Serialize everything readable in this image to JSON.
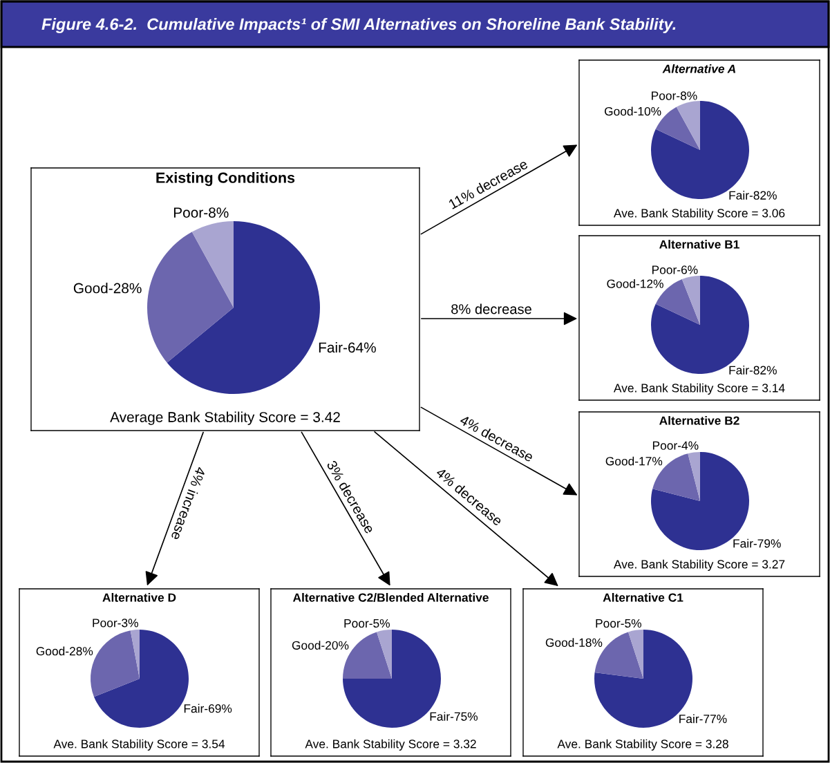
{
  "chart_data": [
    {
      "type": "other",
      "title": "Figure 4.6-2.  Cumulative Impacts¹ of SMI Alternatives on Shoreline Bank Stability."
    },
    {
      "type": "pie",
      "title": "Existing Conditions",
      "categories": [
        "Fair-64%",
        "Good-28%",
        "Poor-8%"
      ],
      "values": [
        64,
        28,
        8
      ],
      "colors": [
        "#2e3192",
        "#6c66ae",
        "#a9a5d1"
      ],
      "annotations": [
        "Average Bank Stability Score = 3.42"
      ]
    },
    {
      "type": "pie",
      "title": "Alternative A",
      "categories": [
        "Fair-82%",
        "Good-10%",
        "Poor-8%"
      ],
      "values": [
        82,
        10,
        8
      ],
      "colors": [
        "#2e3192",
        "#6c66ae",
        "#a9a5d1"
      ],
      "annotations": [
        "Ave. Bank Stability Score = 3.06",
        "11% decrease"
      ]
    },
    {
      "type": "pie",
      "title": "Alternative B1",
      "categories": [
        "Fair-82%",
        "Good-12%",
        "Poor-6%"
      ],
      "values": [
        82,
        12,
        6
      ],
      "colors": [
        "#2e3192",
        "#6c66ae",
        "#a9a5d1"
      ],
      "annotations": [
        "Ave. Bank Stability Score = 3.14",
        "8% decrease"
      ]
    },
    {
      "type": "pie",
      "title": "Alternative B2",
      "categories": [
        "Fair-79%",
        "Good-17%",
        "Poor-4%"
      ],
      "values": [
        79,
        17,
        4
      ],
      "colors": [
        "#2e3192",
        "#6c66ae",
        "#a9a5d1"
      ],
      "annotations": [
        "Ave. Bank Stability Score = 3.27",
        "4% decrease"
      ]
    },
    {
      "type": "pie",
      "title": "Alternative D",
      "categories": [
        "Fair-69%",
        "Good-28%",
        "Poor-3%"
      ],
      "values": [
        69,
        28,
        3
      ],
      "colors": [
        "#2e3192",
        "#6c66ae",
        "#a9a5d1"
      ],
      "annotations": [
        "Ave. Bank Stability Score = 3.54",
        "4% increase"
      ]
    },
    {
      "type": "pie",
      "title": "Alternative C2/Blended Alternative",
      "categories": [
        "Fair-75%",
        "Good-20%",
        "Poor-5%"
      ],
      "values": [
        75,
        20,
        5
      ],
      "colors": [
        "#2e3192",
        "#6c66ae",
        "#a9a5d1"
      ],
      "annotations": [
        "Ave. Bank Stability Score = 3.32",
        "3% decrease"
      ]
    },
    {
      "type": "pie",
      "title": "Alternative C1",
      "categories": [
        "Fair-77%",
        "Good-18%",
        "Poor-5%"
      ],
      "values": [
        77,
        18,
        5
      ],
      "colors": [
        "#2e3192",
        "#6c66ae",
        "#a9a5d1"
      ],
      "annotations": [
        "Ave. Bank Stability Score = 3.28",
        "4% decrease"
      ]
    }
  ]
}
